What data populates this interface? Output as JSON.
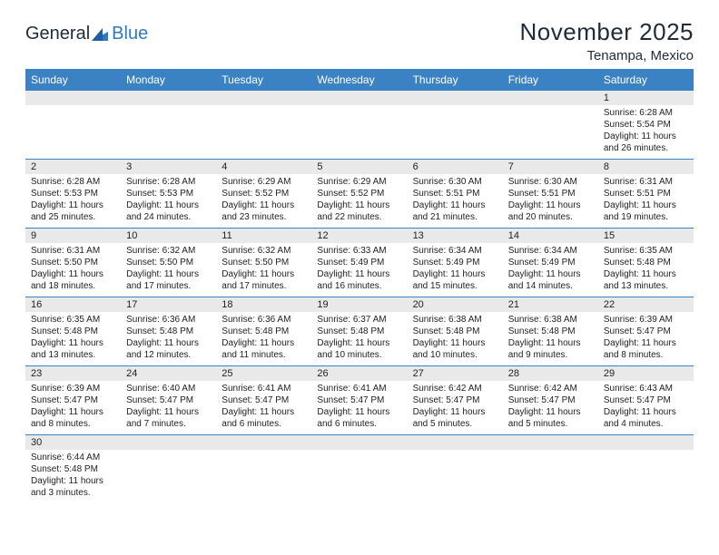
{
  "brand": {
    "part1": "General",
    "part2": "Blue"
  },
  "title": "November 2025",
  "location": "Tenampa, Mexico",
  "colors": {
    "header_bg": "#3b82c4",
    "header_text": "#ffffff",
    "daynum_bg": "#e9e9e9",
    "row_divider": "#3b82c4",
    "text": "#222222",
    "logo_blue": "#2e78c4"
  },
  "typography": {
    "title_fontsize": 26,
    "location_fontsize": 15,
    "header_fontsize": 12,
    "daynum_fontsize": 11,
    "body_fontsize": 10
  },
  "weekdays": [
    "Sunday",
    "Monday",
    "Tuesday",
    "Wednesday",
    "Thursday",
    "Friday",
    "Saturday"
  ],
  "weeks": [
    [
      null,
      null,
      null,
      null,
      null,
      null,
      {
        "n": "1",
        "sunrise": "Sunrise: 6:28 AM",
        "sunset": "Sunset: 5:54 PM",
        "daylight": "Daylight: 11 hours and 26 minutes."
      }
    ],
    [
      {
        "n": "2",
        "sunrise": "Sunrise: 6:28 AM",
        "sunset": "Sunset: 5:53 PM",
        "daylight": "Daylight: 11 hours and 25 minutes."
      },
      {
        "n": "3",
        "sunrise": "Sunrise: 6:28 AM",
        "sunset": "Sunset: 5:53 PM",
        "daylight": "Daylight: 11 hours and 24 minutes."
      },
      {
        "n": "4",
        "sunrise": "Sunrise: 6:29 AM",
        "sunset": "Sunset: 5:52 PM",
        "daylight": "Daylight: 11 hours and 23 minutes."
      },
      {
        "n": "5",
        "sunrise": "Sunrise: 6:29 AM",
        "sunset": "Sunset: 5:52 PM",
        "daylight": "Daylight: 11 hours and 22 minutes."
      },
      {
        "n": "6",
        "sunrise": "Sunrise: 6:30 AM",
        "sunset": "Sunset: 5:51 PM",
        "daylight": "Daylight: 11 hours and 21 minutes."
      },
      {
        "n": "7",
        "sunrise": "Sunrise: 6:30 AM",
        "sunset": "Sunset: 5:51 PM",
        "daylight": "Daylight: 11 hours and 20 minutes."
      },
      {
        "n": "8",
        "sunrise": "Sunrise: 6:31 AM",
        "sunset": "Sunset: 5:51 PM",
        "daylight": "Daylight: 11 hours and 19 minutes."
      }
    ],
    [
      {
        "n": "9",
        "sunrise": "Sunrise: 6:31 AM",
        "sunset": "Sunset: 5:50 PM",
        "daylight": "Daylight: 11 hours and 18 minutes."
      },
      {
        "n": "10",
        "sunrise": "Sunrise: 6:32 AM",
        "sunset": "Sunset: 5:50 PM",
        "daylight": "Daylight: 11 hours and 17 minutes."
      },
      {
        "n": "11",
        "sunrise": "Sunrise: 6:32 AM",
        "sunset": "Sunset: 5:50 PM",
        "daylight": "Daylight: 11 hours and 17 minutes."
      },
      {
        "n": "12",
        "sunrise": "Sunrise: 6:33 AM",
        "sunset": "Sunset: 5:49 PM",
        "daylight": "Daylight: 11 hours and 16 minutes."
      },
      {
        "n": "13",
        "sunrise": "Sunrise: 6:34 AM",
        "sunset": "Sunset: 5:49 PM",
        "daylight": "Daylight: 11 hours and 15 minutes."
      },
      {
        "n": "14",
        "sunrise": "Sunrise: 6:34 AM",
        "sunset": "Sunset: 5:49 PM",
        "daylight": "Daylight: 11 hours and 14 minutes."
      },
      {
        "n": "15",
        "sunrise": "Sunrise: 6:35 AM",
        "sunset": "Sunset: 5:48 PM",
        "daylight": "Daylight: 11 hours and 13 minutes."
      }
    ],
    [
      {
        "n": "16",
        "sunrise": "Sunrise: 6:35 AM",
        "sunset": "Sunset: 5:48 PM",
        "daylight": "Daylight: 11 hours and 13 minutes."
      },
      {
        "n": "17",
        "sunrise": "Sunrise: 6:36 AM",
        "sunset": "Sunset: 5:48 PM",
        "daylight": "Daylight: 11 hours and 12 minutes."
      },
      {
        "n": "18",
        "sunrise": "Sunrise: 6:36 AM",
        "sunset": "Sunset: 5:48 PM",
        "daylight": "Daylight: 11 hours and 11 minutes."
      },
      {
        "n": "19",
        "sunrise": "Sunrise: 6:37 AM",
        "sunset": "Sunset: 5:48 PM",
        "daylight": "Daylight: 11 hours and 10 minutes."
      },
      {
        "n": "20",
        "sunrise": "Sunrise: 6:38 AM",
        "sunset": "Sunset: 5:48 PM",
        "daylight": "Daylight: 11 hours and 10 minutes."
      },
      {
        "n": "21",
        "sunrise": "Sunrise: 6:38 AM",
        "sunset": "Sunset: 5:48 PM",
        "daylight": "Daylight: 11 hours and 9 minutes."
      },
      {
        "n": "22",
        "sunrise": "Sunrise: 6:39 AM",
        "sunset": "Sunset: 5:47 PM",
        "daylight": "Daylight: 11 hours and 8 minutes."
      }
    ],
    [
      {
        "n": "23",
        "sunrise": "Sunrise: 6:39 AM",
        "sunset": "Sunset: 5:47 PM",
        "daylight": "Daylight: 11 hours and 8 minutes."
      },
      {
        "n": "24",
        "sunrise": "Sunrise: 6:40 AM",
        "sunset": "Sunset: 5:47 PM",
        "daylight": "Daylight: 11 hours and 7 minutes."
      },
      {
        "n": "25",
        "sunrise": "Sunrise: 6:41 AM",
        "sunset": "Sunset: 5:47 PM",
        "daylight": "Daylight: 11 hours and 6 minutes."
      },
      {
        "n": "26",
        "sunrise": "Sunrise: 6:41 AM",
        "sunset": "Sunset: 5:47 PM",
        "daylight": "Daylight: 11 hours and 6 minutes."
      },
      {
        "n": "27",
        "sunrise": "Sunrise: 6:42 AM",
        "sunset": "Sunset: 5:47 PM",
        "daylight": "Daylight: 11 hours and 5 minutes."
      },
      {
        "n": "28",
        "sunrise": "Sunrise: 6:42 AM",
        "sunset": "Sunset: 5:47 PM",
        "daylight": "Daylight: 11 hours and 5 minutes."
      },
      {
        "n": "29",
        "sunrise": "Sunrise: 6:43 AM",
        "sunset": "Sunset: 5:47 PM",
        "daylight": "Daylight: 11 hours and 4 minutes."
      }
    ],
    [
      {
        "n": "30",
        "sunrise": "Sunrise: 6:44 AM",
        "sunset": "Sunset: 5:48 PM",
        "daylight": "Daylight: 11 hours and 3 minutes."
      },
      null,
      null,
      null,
      null,
      null,
      null
    ]
  ]
}
